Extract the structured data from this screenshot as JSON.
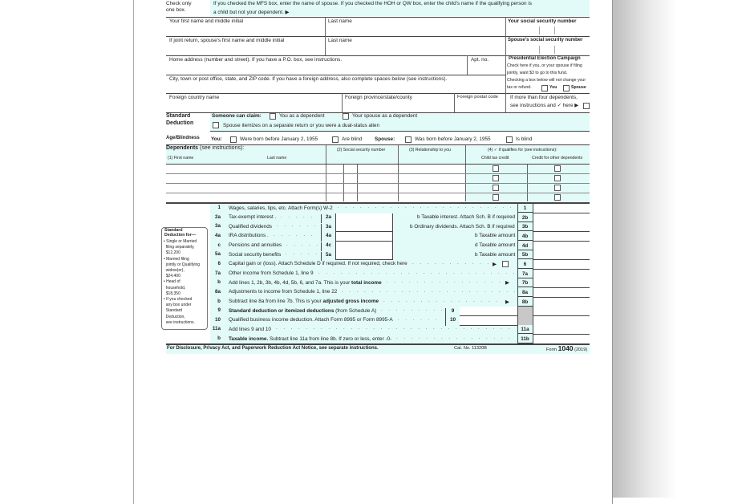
{
  "filing_status": {
    "check_only": "Check only",
    "one_box": "one box.",
    "note_line1": "If you checked the MFS box, enter the name of spouse. If you checked the HOH or QW box, enter the child's name if the qualifying person is",
    "note_line2": "a child but not your dependent. ▶"
  },
  "name": {
    "first": "Your first name and middle initial",
    "last": "Last name",
    "ssn": "Your social security number",
    "spouse_first": "If joint return, spouse's first name and middle initial",
    "spouse_last": "Last name",
    "spouse_ssn": "Spouse's social security number"
  },
  "address": {
    "home": "Home address (number and street). If you have a P.O. box, see instructions.",
    "apt": "Apt. no.",
    "city": "City, town or post office, state, and ZIP code. If you have a foreign address, also complete spaces below (see instructions).",
    "country": "Foreign country name",
    "province": "Foreign province/state/county",
    "postal": "Foreign postal code"
  },
  "campaign": {
    "title": "Presidential Election Campaign",
    "l1": "Check here if you, or your spouse if filing",
    "l2": "jointly, want $3 to go to this fund.",
    "l3": "Checking a box below will not change your",
    "l4": "tax or refund.",
    "you": "You",
    "spouse": "Spouse"
  },
  "more_dependents": {
    "l1": "If more than four dependents,",
    "l2": "see instructions and ✓ here ▶"
  },
  "standard_deduction": {
    "title1": "Standard",
    "title2": "Deduction",
    "someone": "Someone can claim:",
    "you_dep": "You as a dependent",
    "spouse_dep": "Your spouse as a dependent",
    "itemizes": "Spouse itemizes on a separate return or you were a dual-status alien"
  },
  "age": {
    "title": "Age/Blindness",
    "you": "You:",
    "born": "Were born before January 2, 1955",
    "blind": "Are blind",
    "spouse": "Spouse:",
    "s_born": "Was born before January 2, 1955",
    "s_blind": "Is blind"
  },
  "dependents": {
    "title": "Dependents",
    "see": " (see instructions):",
    "c1": "(1) First name",
    "c1b": "Last name",
    "c2": "(2) Social security number",
    "c3": "(3) Relationship to you",
    "c4": "(4) ✓ if qualifies for (see instructions):",
    "c4a": "Child tax credit",
    "c4b": "Credit for other dependents"
  },
  "sidebar": {
    "title1": "Standard",
    "title2": "Deduction for—",
    "items": [
      "• Single or Married",
      "  filing separately,",
      "  $12,200",
      "• Married filing",
      "  jointly or Qualifying",
      "  widow(er),",
      "  $24,400",
      "• Head of",
      "  household,",
      "  $18,350",
      "• If you checked",
      "  any box under",
      "  Standard",
      "  Deduction,",
      "  see instructions."
    ]
  },
  "income_lines": [
    {
      "num": "1",
      "label": "Wages, salaries, tips, etc. Attach Form(s) W-2",
      "box": "1"
    },
    {
      "num": "2a",
      "label": "Tax-exempt interest .",
      "mid": "2a",
      "blabel": "b Taxable interest. Attach Sch. B if required",
      "box": "2b"
    },
    {
      "num": "3a",
      "label": "Qualified dividends",
      "mid": "3a",
      "blabel": "b Ordinary dividends. Attach Sch. B if required",
      "box": "3b"
    },
    {
      "num": "4a",
      "label": "IRA distributions .",
      "mid": "4a",
      "blabel": "b Taxable amount",
      "box": "4b"
    },
    {
      "num": "c",
      "label": "Pensions and annuities",
      "mid": "4c",
      "blabel": "d Taxable amount",
      "box": "4d"
    },
    {
      "num": "5a",
      "label": "Social security benefits",
      "mid": "5a",
      "blabel": "b Taxable amount",
      "box": "5b"
    },
    {
      "num": "6",
      "label": "Capital gain or (loss). Attach Schedule D if required. If not required, check here",
      "arrow": "▶",
      "box": "6"
    },
    {
      "num": "7a",
      "label": "Other income from Schedule 1, line 9",
      "box": "7a"
    },
    {
      "num": "b",
      "label": "Add lines 1, 2b, 3b, 4b, 4d, 5b, 6, and 7a. This is your ",
      "bold": "total income",
      "arrow": "▶",
      "box": "7b"
    },
    {
      "num": "8a",
      "label": "Adjustments to income from Schedule 1, line 22",
      "box": "8a"
    },
    {
      "num": "b",
      "label": "Subtract line 8a from line 7b. This is your ",
      "bold": "adjusted gross income",
      "arrow": "▶",
      "box": "8b"
    },
    {
      "num": "9",
      "boldfirst": "Standard deduction or itemized deductions",
      "label": " (from Schedule A)",
      "inner": "9"
    },
    {
      "num": "10",
      "label": "Qualified business income deduction. Attach Form 8995 or Form 8995-A",
      "inner": "10"
    },
    {
      "num": "11a",
      "label": "Add lines 9 and 10",
      "box": "11a"
    },
    {
      "num": "b",
      "boldfirst": "Taxable income.",
      "label": " Subtract line 11a from line 8b. If zero or less, enter -0-",
      "box": "11b"
    }
  ],
  "footer": {
    "notice": "For Disclosure, Privacy Act, and Paperwork Reduction Act Notice, see separate instructions.",
    "cat": "Cat. No. 11320B",
    "form_pre": "Form ",
    "form": "1040",
    "year": " (2019)"
  },
  "colors": {
    "form_bg": "#e3fbf8",
    "shaded": "#c8c8c8"
  }
}
